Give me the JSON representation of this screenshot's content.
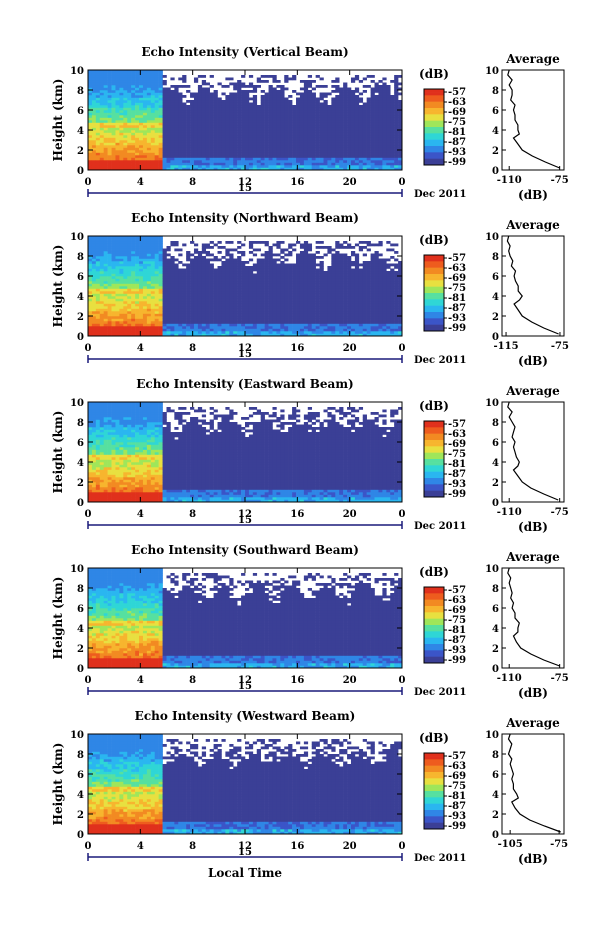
{
  "chart_data": [
    {
      "type": "heatmap",
      "title": "Echo Intensity (Vertical Beam)",
      "ylabel": "Height (km)",
      "ylim": [
        0,
        10
      ],
      "yticks": [
        "0",
        "2",
        "4",
        "6",
        "8",
        "10"
      ],
      "xlim": [
        0,
        24
      ],
      "xticks": [
        "0",
        "4",
        "8",
        "12",
        "16",
        "20",
        "0"
      ],
      "date_label": "15",
      "date_suffix": "Dec 2011",
      "colorbar": {
        "unit": "(dB)",
        "ticks": [
          "-57",
          "-63",
          "-69",
          "-75",
          "-81",
          "-87",
          "-93",
          "-99"
        ]
      },
      "average": {
        "title": "Average",
        "xlabel": "(dB)",
        "xticks": [
          "-110",
          "-75"
        ],
        "xlim": [
          -115,
          -72
        ],
        "heights": [
          0.2,
          0.8,
          1.4,
          2.0,
          2.6,
          3.2,
          3.6,
          4.0,
          4.5,
          5.0,
          5.5,
          6.0,
          6.5,
          7.0,
          7.5,
          8.0,
          8.5,
          9.0,
          9.5,
          10.0
        ],
        "values": [
          -75,
          -85,
          -94,
          -101,
          -104,
          -107,
          -103,
          -104,
          -104,
          -106,
          -106,
          -107,
          -106,
          -109,
          -108,
          -108,
          -110,
          -108,
          -111,
          -110
        ]
      }
    },
    {
      "type": "heatmap",
      "title": "Echo Intensity (Northward Beam)",
      "ylabel": "Height (km)",
      "ylim": [
        0,
        10
      ],
      "yticks": [
        "0",
        "2",
        "4",
        "6",
        "8",
        "10"
      ],
      "xlim": [
        0,
        24
      ],
      "xticks": [
        "0",
        "4",
        "8",
        "12",
        "16",
        "20",
        "0"
      ],
      "date_label": "15",
      "date_suffix": "Dec 2011",
      "colorbar": {
        "unit": "(dB)",
        "ticks": [
          "-57",
          "-63",
          "-69",
          "-75",
          "-81",
          "-87",
          "-93",
          "-99"
        ]
      },
      "average": {
        "title": "Average",
        "xlabel": "(dB)",
        "xticks": [
          "-115",
          "-75"
        ],
        "xlim": [
          -118,
          -72
        ],
        "heights": [
          0.2,
          0.8,
          1.4,
          2.0,
          2.6,
          3.2,
          3.6,
          4.0,
          4.5,
          5.0,
          5.5,
          6.0,
          6.5,
          7.0,
          7.5,
          8.0,
          8.5,
          9.0,
          9.5,
          10.0
        ],
        "values": [
          -76,
          -87,
          -96,
          -103,
          -106,
          -109,
          -105,
          -103,
          -106,
          -106,
          -108,
          -109,
          -108,
          -111,
          -110,
          -112,
          -113,
          -112,
          -114,
          -113
        ]
      }
    },
    {
      "type": "heatmap",
      "title": "Echo Intensity (Eastward Beam)",
      "ylabel": "Height (km)",
      "ylim": [
        0,
        10
      ],
      "yticks": [
        "0",
        "2",
        "4",
        "6",
        "8",
        "10"
      ],
      "xlim": [
        0,
        24
      ],
      "xticks": [
        "0",
        "4",
        "8",
        "12",
        "16",
        "20",
        "0"
      ],
      "date_label": "15",
      "date_suffix": "Dec 2011",
      "colorbar": {
        "unit": "(dB)",
        "ticks": [
          "-57",
          "-63",
          "-69",
          "-75",
          "-81",
          "-87",
          "-93",
          "-99"
        ]
      },
      "average": {
        "title": "Average",
        "xlabel": "(dB)",
        "xticks": [
          "-110",
          "-75"
        ],
        "xlim": [
          -115,
          -72
        ],
        "heights": [
          0.2,
          0.8,
          1.4,
          2.0,
          2.6,
          3.2,
          3.6,
          4.0,
          4.5,
          5.0,
          5.5,
          6.0,
          6.5,
          7.0,
          7.5,
          8.0,
          8.5,
          9.0,
          9.5,
          10.0
        ],
        "values": [
          -76,
          -86,
          -95,
          -101,
          -104,
          -107,
          -104,
          -103,
          -105,
          -106,
          -107,
          -106,
          -108,
          -107,
          -106,
          -108,
          -110,
          -108,
          -111,
          -110
        ]
      }
    },
    {
      "type": "heatmap",
      "title": "Echo Intensity (Southward Beam)",
      "ylabel": "Height (km)",
      "ylim": [
        0,
        10
      ],
      "yticks": [
        "0",
        "2",
        "4",
        "6",
        "8",
        "10"
      ],
      "xlim": [
        0,
        24
      ],
      "xticks": [
        "0",
        "4",
        "8",
        "12",
        "16",
        "20",
        "0"
      ],
      "date_label": "15",
      "date_suffix": "Dec 2011",
      "colorbar": {
        "unit": "(dB)",
        "ticks": [
          "-57",
          "-63",
          "-69",
          "-75",
          "-81",
          "-87",
          "-93",
          "-99"
        ]
      },
      "average": {
        "title": "Average",
        "xlabel": "(dB)",
        "xticks": [
          "-110",
          "-75"
        ],
        "xlim": [
          -115,
          -72
        ],
        "heights": [
          0.2,
          0.8,
          1.4,
          2.0,
          2.6,
          3.2,
          3.6,
          4.0,
          4.5,
          5.0,
          5.5,
          6.0,
          6.5,
          7.0,
          7.5,
          8.0,
          8.5,
          9.0,
          9.5,
          10.0
        ],
        "values": [
          -75,
          -86,
          -95,
          -102,
          -105,
          -107,
          -104,
          -104,
          -103,
          -106,
          -106,
          -108,
          -107,
          -109,
          -108,
          -109,
          -110,
          -109,
          -111,
          -110
        ]
      }
    },
    {
      "type": "heatmap",
      "title": "Echo Intensity (Westward Beam)",
      "ylabel": "Height (km)",
      "ylim": [
        0,
        10
      ],
      "yticks": [
        "0",
        "2",
        "4",
        "6",
        "8",
        "10"
      ],
      "xlim": [
        0,
        24
      ],
      "xticks": [
        "0",
        "4",
        "8",
        "12",
        "16",
        "20",
        "0"
      ],
      "date_label": "15",
      "date_suffix": "Dec 2011",
      "xlabel": "Local Time",
      "colorbar": {
        "unit": "(dB)",
        "ticks": [
          "-57",
          "-63",
          "-69",
          "-75",
          "-81",
          "-87",
          "-93",
          "-99"
        ]
      },
      "average": {
        "title": "Average",
        "xlabel": "(dB)",
        "xticks": [
          "-105",
          "-75"
        ],
        "xlim": [
          -110,
          -72
        ],
        "heights": [
          0.2,
          0.8,
          1.4,
          2.0,
          2.6,
          3.2,
          3.6,
          4.0,
          4.5,
          5.0,
          5.5,
          6.0,
          6.5,
          7.0,
          7.5,
          8.0,
          8.5,
          9.0,
          9.5,
          10.0
        ],
        "values": [
          -74,
          -84,
          -93,
          -99,
          -102,
          -104,
          -100,
          -101,
          -103,
          -103,
          -104,
          -103,
          -104,
          -105,
          -104,
          -106,
          -105,
          -104,
          -106,
          -105
        ]
      }
    }
  ]
}
